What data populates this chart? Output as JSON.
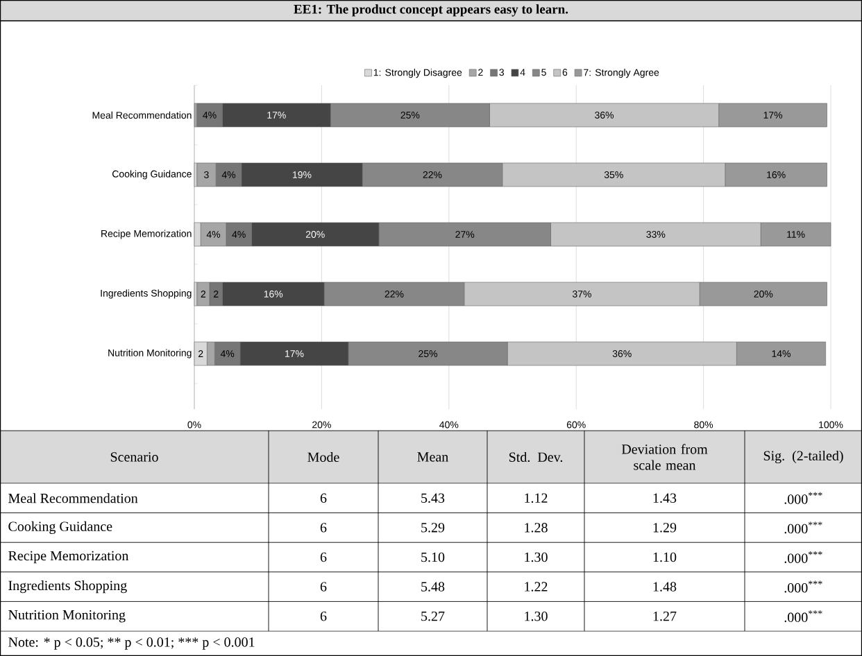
{
  "chart_data": [
    {
      "type": "bar",
      "orientation": "horizontal",
      "stacked": true,
      "title": "EE1: The product concept appears easy to learn.",
      "categories": [
        "Meal Recommendation",
        "Cooking Guidance",
        "Recipe Memorization",
        "Ingredients Shopping",
        "Nutrition Monitoring"
      ],
      "series": [
        {
          "name": "1: Strongly Disagree",
          "color": "#d9d9d9",
          "values": [
            0,
            0.4,
            1,
            0.4,
            2
          ],
          "value_labels": [
            null,
            null,
            null,
            null,
            "2"
          ]
        },
        {
          "name": "2",
          "color": "#a6a6a6",
          "values": [
            0.4,
            3,
            4,
            2,
            1.2
          ],
          "value_labels": [
            null,
            "3",
            "4%",
            "2",
            null
          ]
        },
        {
          "name": "3",
          "color": "#767676",
          "values": [
            4,
            4,
            4,
            2,
            4
          ],
          "value_labels": [
            "4%",
            "4%",
            "4%",
            "2",
            "4%"
          ]
        },
        {
          "name": "4",
          "color": "#454545",
          "values": [
            17,
            19,
            20,
            16,
            17
          ],
          "value_labels": [
            "17%",
            "19%",
            "20%",
            "16%",
            "17%"
          ]
        },
        {
          "name": "5",
          "color": "#878787",
          "values": [
            25,
            22,
            27,
            22,
            25
          ],
          "value_labels": [
            "25%",
            "22%",
            "27%",
            "22%",
            "25%"
          ]
        },
        {
          "name": "6",
          "color": "#c4c4c4",
          "values": [
            36,
            35,
            33,
            37,
            36
          ],
          "value_labels": [
            "36%",
            "35%",
            "33%",
            "37%",
            "36%"
          ]
        },
        {
          "name": "7: Strongly Agree",
          "color": "#999999",
          "values": [
            17,
            16,
            11,
            20,
            14
          ],
          "value_labels": [
            "17%",
            "16%",
            "11%",
            "20%",
            "14%"
          ]
        }
      ],
      "xlim": [
        0,
        100
      ],
      "xticks": [
        {
          "value": 0,
          "label": "0%"
        },
        {
          "value": 20,
          "label": "20%"
        },
        {
          "value": 40,
          "label": "40%"
        },
        {
          "value": 60,
          "label": "60%"
        },
        {
          "value": 80,
          "label": "80%"
        },
        {
          "value": 100,
          "label": "100%"
        }
      ],
      "grid": "x",
      "legend": "top"
    },
    {
      "type": "other",
      "categories": [
        "Scenario",
        "Mode",
        "Mean",
        "Std. Dev.",
        "Deviation from scale mean",
        "Sig. (2-tailed)"
      ],
      "annotations": [
        "Meal Recommendation",
        "6",
        "5.43",
        "1.12",
        "1.43",
        ".000$^{***}$",
        "Cooking Guidance",
        "6",
        "5.29",
        "1.28",
        "1.29",
        ".000$^{***}$",
        "Recipe Memorization",
        "6",
        "5.10",
        "1.30",
        "1.10",
        ".000$^{***}$",
        "Ingredients Shopping",
        "6",
        "5.48",
        "1.22",
        "1.48",
        ".000$^{***}$",
        "Nutrition Monitoring",
        "6",
        "5.27",
        "1.30",
        "1.27",
        ".000$^{***}$",
        "Note: * p < 0.05; ** p < 0.01; *** p < 0.001"
      ]
    }
  ]
}
